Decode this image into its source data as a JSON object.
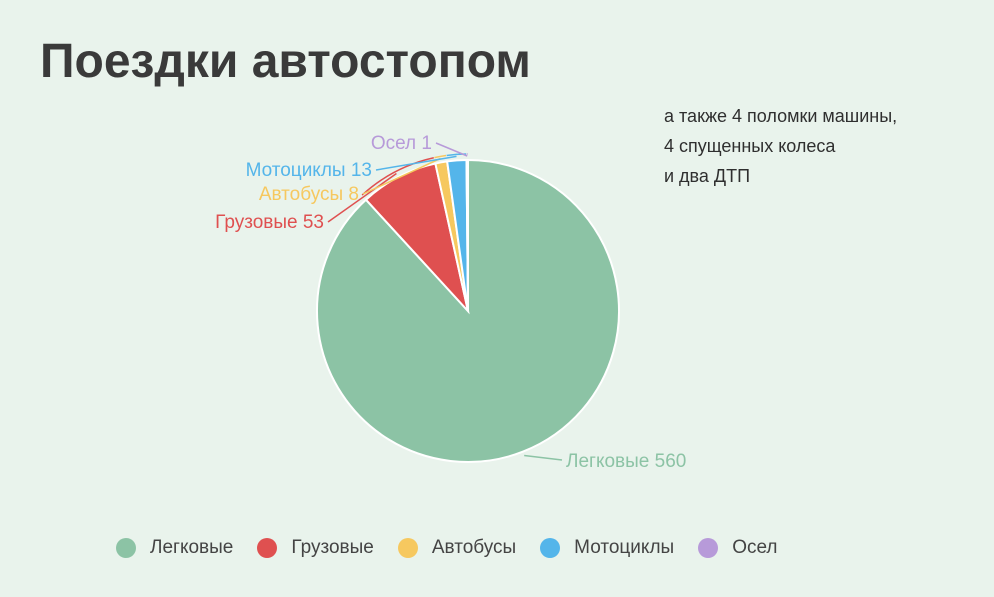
{
  "title": "Поездки автостопом",
  "note": [
    "а также 4 поломки машины,",
    "4 спущенных колеса",
    "и два ДТП"
  ],
  "chart_data": {
    "type": "pie",
    "title": "Поездки автостопом",
    "slices": [
      {
        "label": "Легковые",
        "value": 560,
        "color": "#8cc3a5",
        "callout": "Легковые 560"
      },
      {
        "label": "Грузовые",
        "value": 53,
        "color": "#df5050",
        "callout": "Грузовые 53"
      },
      {
        "label": "Автобусы",
        "value": 8,
        "color": "#f6c85f",
        "callout": "Автобусы 8"
      },
      {
        "label": "Мотоциклы",
        "value": 13,
        "color": "#54b5ea",
        "callout": "Мотоциклы 13"
      },
      {
        "label": "Осел",
        "value": 1,
        "color": "#b79ad9",
        "callout": "Осел 1"
      }
    ],
    "legend_position": "bottom"
  }
}
